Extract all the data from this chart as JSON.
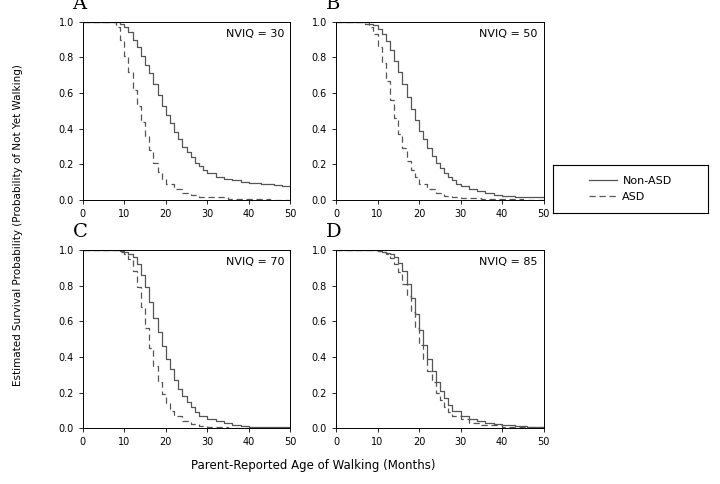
{
  "xlabel": "Parent-Reported Age of Walking (Months)",
  "ylabel": "Estimated Survival Probability (Probability of Not Yet Walking)",
  "xlim": [
    0,
    50
  ],
  "ylim": [
    0,
    1.0
  ],
  "xticks": [
    0,
    10,
    20,
    30,
    40,
    50
  ],
  "yticks": [
    0.0,
    0.2,
    0.4,
    0.6,
    0.8,
    1.0
  ],
  "background_color": "#ffffff",
  "line_color": "#555555",
  "panels": [
    {
      "label": "A",
      "nviq_text": "NVIQ = 30",
      "nonasd_t": [
        0,
        9,
        9,
        10,
        10,
        11,
        11,
        12,
        12,
        13,
        13,
        14,
        14,
        15,
        15,
        16,
        16,
        17,
        17,
        18,
        18,
        19,
        19,
        20,
        20,
        21,
        21,
        22,
        22,
        23,
        23,
        24,
        24,
        25,
        25,
        26,
        26,
        27,
        27,
        28,
        28,
        29,
        29,
        30,
        30,
        32,
        32,
        34,
        34,
        36,
        36,
        38,
        38,
        40,
        40,
        43,
        43,
        46,
        46,
        48,
        48,
        50
      ],
      "nonasd_s": [
        1.0,
        1.0,
        0.99,
        0.99,
        0.97,
        0.97,
        0.94,
        0.94,
        0.9,
        0.9,
        0.86,
        0.86,
        0.81,
        0.81,
        0.76,
        0.76,
        0.71,
        0.71,
        0.65,
        0.65,
        0.59,
        0.59,
        0.53,
        0.53,
        0.48,
        0.48,
        0.43,
        0.43,
        0.38,
        0.38,
        0.34,
        0.34,
        0.3,
        0.3,
        0.27,
        0.27,
        0.24,
        0.24,
        0.21,
        0.21,
        0.19,
        0.19,
        0.17,
        0.17,
        0.15,
        0.15,
        0.13,
        0.13,
        0.12,
        0.12,
        0.11,
        0.11,
        0.1,
        0.1,
        0.095,
        0.095,
        0.09,
        0.09,
        0.085,
        0.085,
        0.08,
        0.08
      ],
      "asd_t": [
        0,
        8,
        8,
        9,
        9,
        10,
        10,
        11,
        11,
        12,
        12,
        13,
        13,
        14,
        14,
        15,
        15,
        16,
        16,
        17,
        17,
        18,
        18,
        19,
        19,
        20,
        20,
        22,
        22,
        24,
        24,
        26,
        26,
        28,
        28,
        30,
        30,
        35,
        35,
        40,
        40,
        45,
        45,
        50
      ],
      "asd_s": [
        1.0,
        1.0,
        0.97,
        0.97,
        0.9,
        0.9,
        0.81,
        0.81,
        0.72,
        0.72,
        0.62,
        0.62,
        0.53,
        0.53,
        0.44,
        0.44,
        0.36,
        0.36,
        0.28,
        0.28,
        0.21,
        0.21,
        0.16,
        0.16,
        0.12,
        0.12,
        0.09,
        0.09,
        0.06,
        0.06,
        0.04,
        0.04,
        0.03,
        0.03,
        0.02,
        0.02,
        0.015,
        0.015,
        0.008,
        0.008,
        0.005,
        0.005,
        0.003,
        0.003
      ]
    },
    {
      "label": "B",
      "nviq_text": "NVIQ = 50",
      "nonasd_t": [
        0,
        8,
        8,
        9,
        9,
        10,
        10,
        11,
        11,
        12,
        12,
        13,
        13,
        14,
        14,
        15,
        15,
        16,
        16,
        17,
        17,
        18,
        18,
        19,
        19,
        20,
        20,
        21,
        21,
        22,
        22,
        23,
        23,
        24,
        24,
        25,
        25,
        26,
        26,
        27,
        27,
        28,
        28,
        29,
        29,
        30,
        30,
        32,
        32,
        34,
        34,
        36,
        36,
        38,
        38,
        40,
        40,
        43,
        43,
        46,
        46,
        48,
        48,
        50
      ],
      "nonasd_s": [
        1.0,
        1.0,
        0.99,
        0.99,
        0.98,
        0.98,
        0.96,
        0.96,
        0.93,
        0.93,
        0.89,
        0.89,
        0.84,
        0.84,
        0.78,
        0.78,
        0.72,
        0.72,
        0.65,
        0.65,
        0.58,
        0.58,
        0.51,
        0.51,
        0.45,
        0.45,
        0.39,
        0.39,
        0.34,
        0.34,
        0.29,
        0.29,
        0.25,
        0.25,
        0.21,
        0.21,
        0.18,
        0.18,
        0.15,
        0.15,
        0.13,
        0.13,
        0.11,
        0.11,
        0.09,
        0.09,
        0.08,
        0.08,
        0.065,
        0.065,
        0.05,
        0.05,
        0.04,
        0.04,
        0.03,
        0.03,
        0.025,
        0.025,
        0.02,
        0.02,
        0.018,
        0.018,
        0.015,
        0.015
      ],
      "asd_t": [
        0,
        7,
        7,
        8,
        8,
        9,
        9,
        10,
        10,
        11,
        11,
        12,
        12,
        13,
        13,
        14,
        14,
        15,
        15,
        16,
        16,
        17,
        17,
        18,
        18,
        19,
        19,
        20,
        20,
        22,
        22,
        24,
        24,
        26,
        26,
        28,
        28,
        30,
        30,
        35,
        35,
        40,
        40,
        45,
        45,
        50
      ],
      "asd_s": [
        1.0,
        1.0,
        0.99,
        0.99,
        0.97,
        0.97,
        0.93,
        0.93,
        0.86,
        0.86,
        0.77,
        0.77,
        0.67,
        0.67,
        0.56,
        0.56,
        0.46,
        0.46,
        0.37,
        0.37,
        0.29,
        0.29,
        0.22,
        0.22,
        0.17,
        0.17,
        0.13,
        0.13,
        0.09,
        0.09,
        0.06,
        0.06,
        0.04,
        0.04,
        0.025,
        0.025,
        0.016,
        0.016,
        0.01,
        0.01,
        0.006,
        0.006,
        0.004,
        0.004,
        0.003,
        0.003
      ]
    },
    {
      "label": "C",
      "nviq_text": "NVIQ = 70",
      "nonasd_t": [
        0,
        9,
        9,
        10,
        10,
        11,
        11,
        12,
        12,
        13,
        13,
        14,
        14,
        15,
        15,
        16,
        16,
        17,
        17,
        18,
        18,
        19,
        19,
        20,
        20,
        21,
        21,
        22,
        22,
        23,
        23,
        24,
        24,
        25,
        25,
        26,
        26,
        27,
        27,
        28,
        28,
        30,
        30,
        32,
        32,
        34,
        34,
        36,
        36,
        38,
        38,
        40,
        40,
        43,
        43,
        46,
        46,
        50
      ],
      "nonasd_s": [
        1.0,
        1.0,
        0.995,
        0.995,
        0.99,
        0.99,
        0.98,
        0.98,
        0.96,
        0.96,
        0.92,
        0.92,
        0.86,
        0.86,
        0.79,
        0.79,
        0.71,
        0.71,
        0.62,
        0.62,
        0.54,
        0.54,
        0.46,
        0.46,
        0.39,
        0.39,
        0.33,
        0.33,
        0.27,
        0.27,
        0.22,
        0.22,
        0.18,
        0.18,
        0.15,
        0.15,
        0.12,
        0.12,
        0.09,
        0.09,
        0.07,
        0.07,
        0.05,
        0.05,
        0.04,
        0.04,
        0.03,
        0.03,
        0.02,
        0.02,
        0.015,
        0.015,
        0.01,
        0.01,
        0.007,
        0.007,
        0.005,
        0.005
      ],
      "asd_t": [
        0,
        9,
        9,
        10,
        10,
        11,
        11,
        12,
        12,
        13,
        13,
        14,
        14,
        15,
        15,
        16,
        16,
        17,
        17,
        18,
        18,
        19,
        19,
        20,
        20,
        21,
        21,
        22,
        22,
        24,
        24,
        26,
        26,
        28,
        28,
        30,
        30,
        32,
        32,
        35,
        35,
        40,
        40,
        50
      ],
      "asd_s": [
        1.0,
        1.0,
        0.99,
        0.99,
        0.975,
        0.975,
        0.95,
        0.95,
        0.88,
        0.88,
        0.79,
        0.79,
        0.68,
        0.68,
        0.56,
        0.56,
        0.45,
        0.45,
        0.35,
        0.35,
        0.26,
        0.26,
        0.19,
        0.19,
        0.14,
        0.14,
        0.1,
        0.1,
        0.07,
        0.07,
        0.04,
        0.04,
        0.025,
        0.025,
        0.015,
        0.015,
        0.009,
        0.009,
        0.005,
        0.005,
        0.003,
        0.003,
        0.002,
        0.002
      ]
    },
    {
      "label": "D",
      "nviq_text": "NVIQ = 85",
      "nonasd_t": [
        0,
        9,
        9,
        10,
        10,
        11,
        11,
        12,
        12,
        13,
        13,
        14,
        14,
        15,
        15,
        16,
        16,
        17,
        17,
        18,
        18,
        19,
        19,
        20,
        20,
        21,
        21,
        22,
        22,
        23,
        23,
        24,
        24,
        25,
        25,
        26,
        26,
        27,
        27,
        28,
        28,
        30,
        30,
        32,
        32,
        34,
        34,
        36,
        36,
        38,
        38,
        40,
        40,
        43,
        43,
        46,
        46,
        50
      ],
      "nonasd_s": [
        1.0,
        1.0,
        0.998,
        0.998,
        0.995,
        0.995,
        0.99,
        0.99,
        0.985,
        0.985,
        0.975,
        0.975,
        0.96,
        0.96,
        0.93,
        0.93,
        0.88,
        0.88,
        0.81,
        0.81,
        0.73,
        0.73,
        0.64,
        0.64,
        0.55,
        0.55,
        0.47,
        0.47,
        0.39,
        0.39,
        0.32,
        0.32,
        0.26,
        0.26,
        0.21,
        0.21,
        0.17,
        0.17,
        0.13,
        0.13,
        0.1,
        0.1,
        0.07,
        0.07,
        0.05,
        0.05,
        0.04,
        0.04,
        0.03,
        0.03,
        0.022,
        0.022,
        0.016,
        0.016,
        0.012,
        0.012,
        0.009,
        0.009
      ],
      "asd_t": [
        0,
        9,
        9,
        10,
        10,
        11,
        11,
        12,
        12,
        13,
        13,
        14,
        14,
        15,
        15,
        16,
        16,
        17,
        17,
        18,
        18,
        19,
        19,
        20,
        20,
        21,
        21,
        22,
        22,
        23,
        23,
        24,
        24,
        25,
        25,
        26,
        26,
        27,
        27,
        28,
        28,
        30,
        30,
        32,
        32,
        35,
        35,
        40,
        40,
        45,
        45,
        50
      ],
      "asd_s": [
        1.0,
        1.0,
        0.998,
        0.998,
        0.995,
        0.995,
        0.988,
        0.988,
        0.975,
        0.975,
        0.955,
        0.955,
        0.92,
        0.92,
        0.875,
        0.875,
        0.81,
        0.81,
        0.74,
        0.74,
        0.65,
        0.65,
        0.56,
        0.56,
        0.47,
        0.47,
        0.39,
        0.39,
        0.32,
        0.32,
        0.26,
        0.26,
        0.2,
        0.2,
        0.16,
        0.16,
        0.12,
        0.12,
        0.09,
        0.09,
        0.07,
        0.07,
        0.05,
        0.05,
        0.03,
        0.03,
        0.018,
        0.018,
        0.01,
        0.01,
        0.006,
        0.006
      ]
    }
  ]
}
